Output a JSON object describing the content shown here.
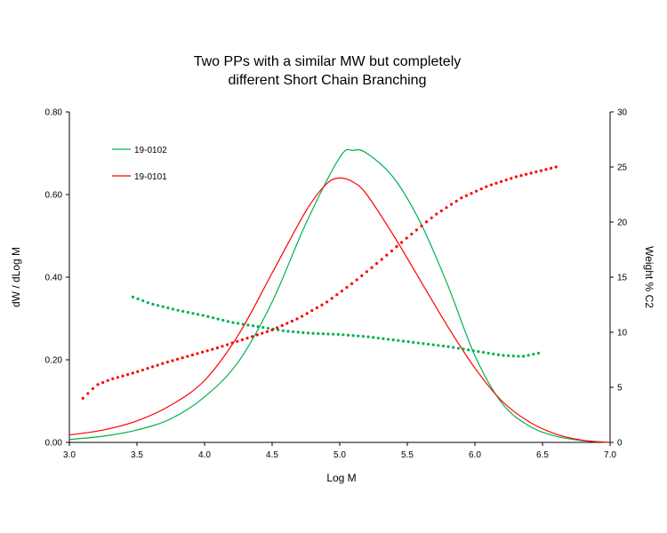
{
  "chart_data": {
    "type": "line",
    "title": [
      "Two PPs with a similar MW but completely",
      "different Short Chain Branching"
    ],
    "xlabel": "Log M",
    "ylabel": "dW / dLog M",
    "y2label": "Weight % C2",
    "xlim": [
      3.0,
      7.0
    ],
    "ylim": [
      0,
      0.8
    ],
    "y2lim": [
      0,
      30
    ],
    "x_ticks": [
      "3.0",
      "3.5",
      "4.0",
      "4.5",
      "5.0",
      "5.5",
      "6.0",
      "6.5",
      "7.0"
    ],
    "y_ticks": [
      "0.00",
      "0.20",
      "0.40",
      "0.60",
      "0.80"
    ],
    "y2_ticks": [
      "0",
      "5",
      "10",
      "15",
      "20",
      "25",
      "30"
    ],
    "grid": false,
    "legend_position": "top-left",
    "colors": {
      "green": "#00b050",
      "red": "#ff0000"
    },
    "series": [
      {
        "name": "19-0102",
        "color": "#00b050",
        "axis": "left",
        "style": "line",
        "x": [
          3.0,
          3.25,
          3.5,
          3.75,
          4.0,
          4.25,
          4.5,
          4.75,
          5.0,
          5.1,
          5.2,
          5.4,
          5.6,
          5.8,
          6.0,
          6.2,
          6.4,
          6.6,
          6.8,
          7.0
        ],
        "y": [
          0.007,
          0.015,
          0.03,
          0.057,
          0.11,
          0.195,
          0.34,
          0.53,
          0.69,
          0.707,
          0.7,
          0.64,
          0.53,
          0.38,
          0.21,
          0.095,
          0.04,
          0.015,
          0.004,
          0.0
        ]
      },
      {
        "name": "19-0101",
        "color": "#ff0000",
        "axis": "left",
        "style": "line",
        "x": [
          3.0,
          3.25,
          3.5,
          3.75,
          4.0,
          4.25,
          4.5,
          4.75,
          4.9,
          5.0,
          5.1,
          5.2,
          5.4,
          5.6,
          5.8,
          6.0,
          6.2,
          6.4,
          6.6,
          6.8,
          7.0
        ],
        "y": [
          0.018,
          0.03,
          0.052,
          0.09,
          0.15,
          0.26,
          0.41,
          0.56,
          0.625,
          0.64,
          0.63,
          0.6,
          0.5,
          0.39,
          0.28,
          0.18,
          0.1,
          0.05,
          0.02,
          0.005,
          0.0
        ]
      },
      {
        "name": "19-0102",
        "color": "#00b050",
        "axis": "right",
        "style": "dots",
        "x": [
          3.47,
          3.6,
          3.8,
          4.0,
          4.2,
          4.4,
          4.6,
          4.8,
          5.0,
          5.2,
          5.4,
          5.6,
          5.8,
          6.0,
          6.2,
          6.35,
          6.47
        ],
        "y": [
          13.2,
          12.6,
          12.0,
          11.5,
          10.9,
          10.5,
          10.1,
          9.9,
          9.8,
          9.6,
          9.3,
          9.0,
          8.7,
          8.3,
          7.9,
          7.8,
          8.1
        ]
      },
      {
        "name": "19-0101",
        "color": "#ff0000",
        "axis": "right",
        "style": "dots",
        "x": [
          3.1,
          3.2,
          3.3,
          3.5,
          3.7,
          3.9,
          4.1,
          4.3,
          4.5,
          4.7,
          4.9,
          5.1,
          5.3,
          5.5,
          5.7,
          5.9,
          6.1,
          6.3,
          6.5,
          6.6
        ],
        "y": [
          4.0,
          5.2,
          5.7,
          6.4,
          7.2,
          7.9,
          8.6,
          9.4,
          10.2,
          11.3,
          12.7,
          14.5,
          16.5,
          18.6,
          20.6,
          22.2,
          23.3,
          24.1,
          24.7,
          25.0
        ]
      }
    ]
  }
}
